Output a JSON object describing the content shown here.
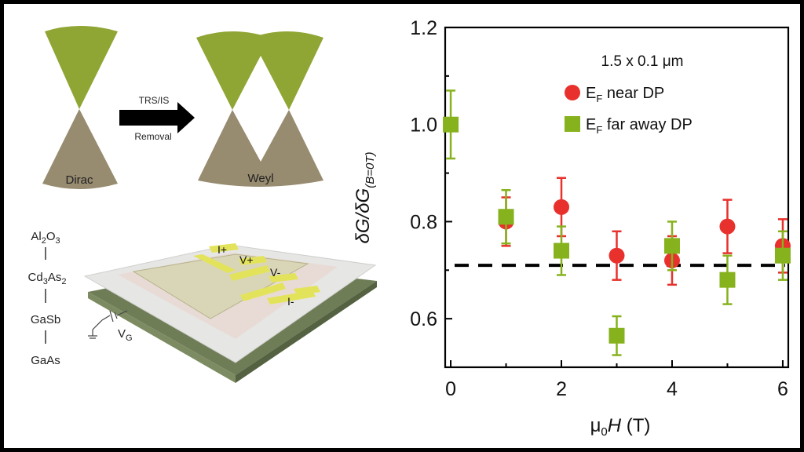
{
  "schematic": {
    "dirac_label": "Dirac",
    "weyl_label": "Weyl",
    "arrow_top_label": "TRS/IS",
    "arrow_bottom_label": "Removal",
    "layer_stack": [
      "Al2O3",
      "Cd3As2",
      "GaSb",
      "GaAs"
    ],
    "contacts": [
      "I+",
      "V+",
      "V-",
      "I-"
    ],
    "gate_label": "VG",
    "colors": {
      "cone_green": "#8fa534",
      "cone_brown": "#978b70",
      "substrate": "#6f7d57",
      "contact": "#e3e35b"
    }
  },
  "chart_data": {
    "type": "scatter",
    "title": "1.5 x 0.1 μm",
    "xlabel": "μ0H (T)",
    "ylabel": "δG/δG(B=0T)",
    "xlim": [
      -0.1,
      6.1
    ],
    "ylim": [
      0.5,
      1.2
    ],
    "xticks": [
      0,
      2,
      4,
      6
    ],
    "yticks": [
      0.6,
      0.8,
      1.0,
      1.2
    ],
    "ytick_labels": [
      "0.6",
      "0.8",
      "1.0",
      "1.2"
    ],
    "reference_line": {
      "y": 0.71,
      "style": "dashed",
      "color": "#000000"
    },
    "series": [
      {
        "name": "EF near DP",
        "legend_text": "near DP",
        "marker": "circle",
        "color": "#e8312c",
        "x": [
          1,
          2,
          3,
          4,
          5,
          6
        ],
        "y": [
          0.8,
          0.83,
          0.73,
          0.72,
          0.79,
          0.75
        ],
        "err": [
          0.05,
          0.06,
          0.05,
          0.05,
          0.055,
          0.055
        ]
      },
      {
        "name": "EF far away DP",
        "legend_text": "far away DP",
        "marker": "square",
        "color": "#86b21d",
        "x": [
          0,
          1,
          2,
          3,
          4,
          5,
          6
        ],
        "y": [
          1.0,
          0.81,
          0.74,
          0.565,
          0.75,
          0.68,
          0.73
        ],
        "err": [
          0.07,
          0.055,
          0.05,
          0.04,
          0.05,
          0.05,
          0.05
        ]
      }
    ]
  }
}
